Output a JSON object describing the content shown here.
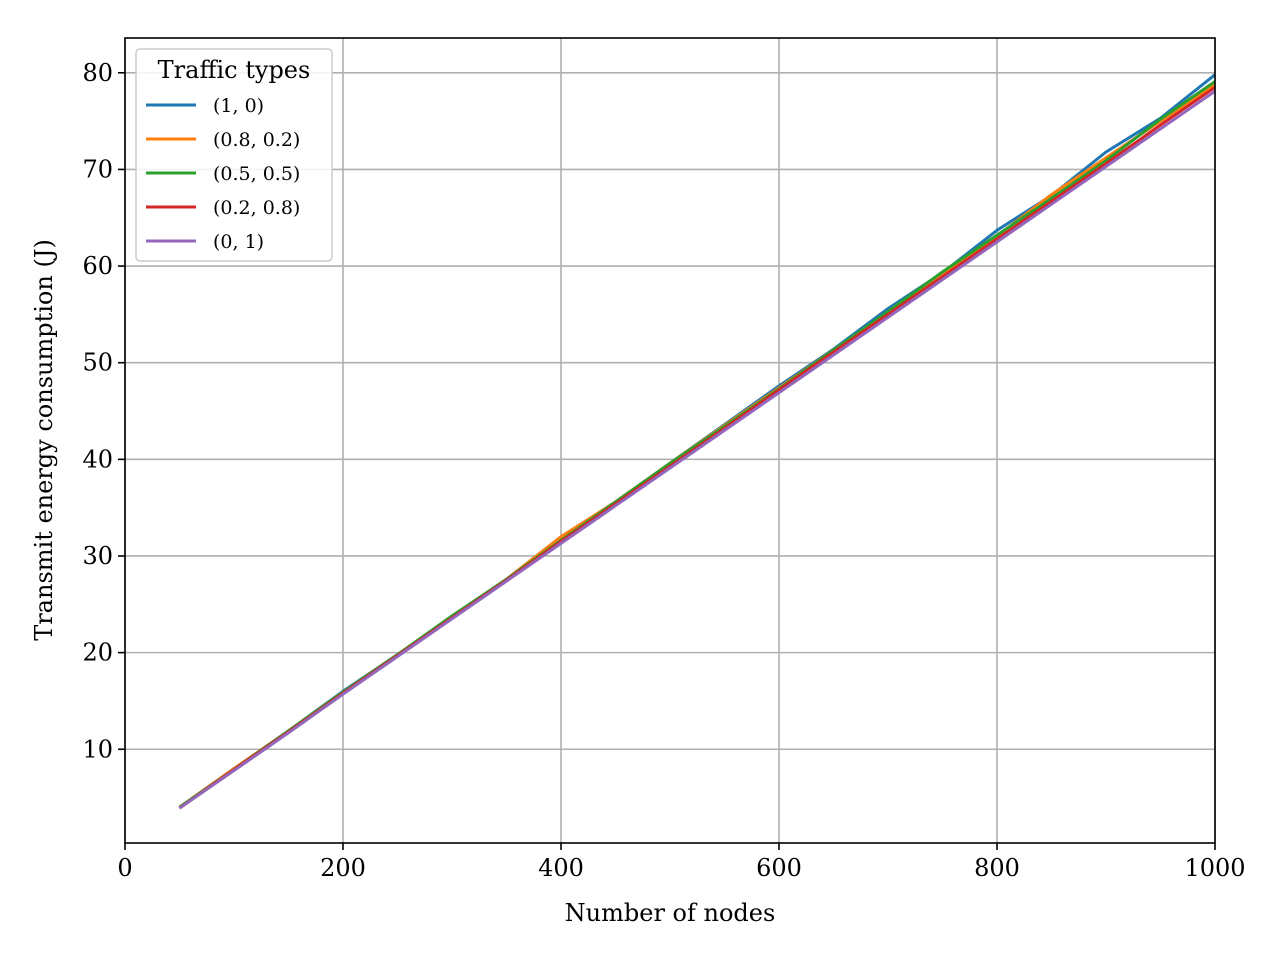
{
  "chart_data": {
    "type": "line",
    "title": "",
    "xlabel": "Number of nodes",
    "ylabel": "Transmit energy consumption (J)",
    "xlim": [
      0,
      1000
    ],
    "ylim": [
      0.3,
      83.6
    ],
    "x_ticks": [
      0,
      200,
      400,
      600,
      800,
      1000
    ],
    "y_ticks": [
      10,
      20,
      30,
      40,
      50,
      60,
      70,
      80
    ],
    "grid": true,
    "legend": {
      "title": "Traffic types",
      "placement": "top-left"
    },
    "x": [
      50,
      100,
      150,
      200,
      250,
      300,
      350,
      400,
      450,
      500,
      550,
      600,
      650,
      700,
      750,
      800,
      850,
      900,
      950,
      1000
    ],
    "series": [
      {
        "name": "(1, 0)",
        "color": "#1f77b4",
        "values": [
          4.0,
          8.0,
          11.9,
          16.0,
          19.8,
          23.7,
          27.5,
          31.6,
          35.5,
          39.6,
          43.6,
          47.6,
          51.4,
          55.6,
          59.3,
          63.7,
          67.3,
          71.8,
          75.3,
          79.8
        ]
      },
      {
        "name": "(0.8, 0.2)",
        "color": "#ff7f0e",
        "values": [
          4.0,
          8.0,
          11.9,
          15.9,
          19.8,
          23.7,
          27.6,
          32.0,
          35.6,
          39.6,
          43.5,
          47.4,
          51.3,
          55.2,
          59.1,
          63.1,
          67.4,
          71.2,
          75.0,
          78.8
        ]
      },
      {
        "name": "(0.5, 0.5)",
        "color": "#2ca02c",
        "values": [
          4.0,
          7.9,
          11.9,
          15.9,
          19.8,
          23.8,
          27.6,
          31.6,
          35.6,
          39.6,
          43.4,
          47.3,
          51.3,
          55.3,
          59.4,
          63.2,
          67.0,
          70.9,
          75.2,
          79.1
        ]
      },
      {
        "name": "(0.2, 0.8)",
        "color": "#d62728",
        "values": [
          3.9,
          7.9,
          11.8,
          15.8,
          19.7,
          23.6,
          27.5,
          31.5,
          35.4,
          39.3,
          43.2,
          47.2,
          51.1,
          55.0,
          58.9,
          62.8,
          66.7,
          70.6,
          74.6,
          78.5
        ]
      },
      {
        "name": "(0, 1)",
        "color": "#9467bd",
        "values": [
          3.9,
          7.8,
          11.7,
          15.7,
          19.6,
          23.5,
          27.4,
          31.3,
          35.2,
          39.1,
          43.0,
          46.9,
          50.8,
          54.7,
          58.6,
          62.5,
          66.4,
          70.3,
          74.2,
          78.1
        ]
      }
    ]
  }
}
